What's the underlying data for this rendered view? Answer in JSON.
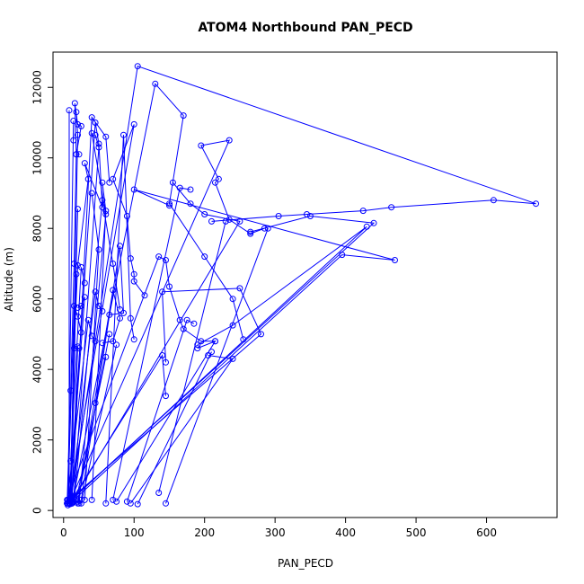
{
  "chart_data": {
    "type": "scatter",
    "title": "ATOM4 Northbound PAN_PECD",
    "xlabel": "PAN_PECD",
    "ylabel": "Altitude (m)",
    "xlim": [
      -15,
      700
    ],
    "ylim": [
      -200,
      13000
    ],
    "x_ticks": [
      0,
      100,
      200,
      300,
      400,
      500,
      600
    ],
    "y_ticks": [
      0,
      2000,
      4000,
      6000,
      8000,
      10000,
      12000
    ],
    "grid": false,
    "legend": "none",
    "style": {
      "line_color": "#0000ff",
      "marker": "open-circle",
      "axis_color": "#000000"
    },
    "series": [
      {
        "values": [
          [
            5,
            200
          ],
          [
            10,
            3400
          ],
          [
            15,
            7000
          ],
          [
            18,
            10100
          ],
          [
            16,
            11550
          ],
          [
            20,
            10950
          ],
          [
            25,
            10900
          ],
          [
            18,
            10100
          ],
          [
            22,
            10100
          ]
        ]
      },
      {
        "values": [
          [
            8,
            200
          ],
          [
            45,
            11000
          ],
          [
            50,
            10400
          ],
          [
            55,
            8600
          ],
          [
            30,
            9850
          ],
          [
            35,
            9400
          ],
          [
            20,
            6950
          ],
          [
            15,
            4600
          ],
          [
            22,
            4600
          ]
        ]
      },
      {
        "values": [
          [
            10,
            250
          ],
          [
            105,
            12600
          ],
          [
            670,
            8700
          ],
          [
            610,
            8800
          ],
          [
            465,
            8600
          ],
          [
            425,
            8500
          ],
          [
            345,
            8400
          ],
          [
            305,
            8350
          ],
          [
            210,
            8200
          ]
        ]
      },
      {
        "values": [
          [
            12,
            200
          ],
          [
            130,
            12100
          ],
          [
            170,
            11200
          ],
          [
            150,
            8700
          ],
          [
            200,
            7200
          ],
          [
            240,
            6000
          ],
          [
            255,
            4850
          ]
        ]
      },
      {
        "values": [
          [
            5,
            300
          ],
          [
            135,
            7200
          ],
          [
            145,
            7100
          ],
          [
            150,
            6350
          ],
          [
            165,
            5400
          ],
          [
            170,
            5150
          ],
          [
            195,
            4800
          ],
          [
            215,
            4800
          ]
        ]
      },
      {
        "values": [
          [
            8,
            250
          ],
          [
            100,
            10950
          ],
          [
            70,
            9400
          ],
          [
            90,
            8350
          ],
          [
            95,
            7150
          ],
          [
            100,
            6700
          ],
          [
            100,
            6500
          ],
          [
            115,
            6100
          ]
        ]
      },
      {
        "values": [
          [
            10,
            300
          ],
          [
            235,
            10500
          ],
          [
            195,
            10350
          ],
          [
            220,
            9400
          ],
          [
            215,
            9300
          ],
          [
            235,
            8250
          ],
          [
            265,
            7850
          ],
          [
            285,
            8000
          ]
        ]
      },
      {
        "values": [
          [
            15,
            350
          ],
          [
            250,
            8200
          ],
          [
            200,
            8400
          ],
          [
            180,
            8700
          ],
          [
            155,
            9300
          ]
        ]
      },
      {
        "values": [
          [
            5,
            200
          ],
          [
            440,
            8150
          ],
          [
            350,
            8350
          ],
          [
            265,
            7900
          ]
        ]
      },
      {
        "values": [
          [
            12,
            250
          ],
          [
            395,
            7250
          ],
          [
            470,
            7100
          ],
          [
            100,
            9100
          ],
          [
            150,
            8650
          ]
        ]
      },
      {
        "values": [
          [
            6,
            200
          ],
          [
            430,
            8050
          ],
          [
            240,
            5250
          ],
          [
            190,
            4700
          ]
        ]
      },
      {
        "values": [
          [
            8,
            300
          ],
          [
            280,
            5000
          ],
          [
            250,
            6300
          ],
          [
            140,
            6200
          ],
          [
            145,
            4200
          ]
        ]
      },
      {
        "values": [
          [
            10,
            250
          ],
          [
            140,
            4400
          ],
          [
            145,
            3250
          ]
        ]
      },
      {
        "values": [
          [
            60,
            200
          ],
          [
            85,
            10650
          ],
          [
            95,
            5450
          ],
          [
            100,
            4850
          ]
        ]
      },
      {
        "values": [
          [
            75,
            250
          ],
          [
            215,
            4800
          ],
          [
            190,
            4600
          ]
        ]
      },
      {
        "values": [
          [
            95,
            200
          ],
          [
            240,
            4300
          ],
          [
            205,
            4400
          ]
        ]
      },
      {
        "values": [
          [
            105,
            180
          ],
          [
            210,
            4500
          ]
        ]
      },
      {
        "values": [
          [
            145,
            200
          ],
          [
            290,
            8000
          ]
        ]
      },
      {
        "values": [
          [
            70,
            300
          ],
          [
            165,
            9150
          ],
          [
            180,
            9100
          ]
        ]
      },
      {
        "values": [
          [
            90,
            250
          ],
          [
            175,
            5400
          ],
          [
            185,
            5300
          ]
        ]
      },
      {
        "values": [
          [
            135,
            500
          ],
          [
            230,
            8200
          ]
        ]
      },
      {
        "values": [
          [
            12,
            400
          ],
          [
            40,
            11150
          ],
          [
            60,
            10600
          ],
          [
            65,
            9300
          ]
        ]
      },
      {
        "values": [
          [
            20,
            200
          ],
          [
            70,
            6250
          ],
          [
            80,
            5450
          ],
          [
            70,
            4800
          ],
          [
            55,
            4750
          ]
        ]
      },
      {
        "values": [
          [
            25,
            300
          ],
          [
            80,
            7500
          ],
          [
            85,
            5600
          ],
          [
            65,
            5550
          ]
        ]
      },
      {
        "values": [
          [
            15,
            250
          ],
          [
            55,
            8800
          ],
          [
            70,
            7000
          ],
          [
            80,
            5700
          ]
        ]
      },
      {
        "values": [
          [
            5,
            200
          ],
          [
            35,
            5400
          ],
          [
            40,
            4950
          ],
          [
            45,
            4800
          ]
        ]
      },
      {
        "values": [
          [
            10,
            250
          ],
          [
            45,
            6200
          ],
          [
            50,
            5800
          ],
          [
            55,
            5650
          ]
        ]
      },
      {
        "values": [
          [
            8,
            200
          ],
          [
            30,
            6050
          ],
          [
            25,
            5800
          ],
          [
            20,
            5750
          ]
        ]
      },
      {
        "values": [
          [
            6,
            300
          ],
          [
            15,
            5800
          ],
          [
            20,
            5500
          ],
          [
            25,
            5050
          ]
        ]
      },
      {
        "values": [
          [
            10,
            1400
          ],
          [
            25,
            6900
          ],
          [
            30,
            6450
          ]
        ]
      },
      {
        "values": [
          [
            12,
            200
          ],
          [
            20,
            4650
          ]
        ]
      },
      {
        "values": [
          [
            18,
            300
          ],
          [
            60,
            4350
          ],
          [
            45,
            3050
          ]
        ]
      },
      {
        "values": [
          [
            20,
            250
          ],
          [
            65,
            5000
          ]
        ]
      },
      {
        "values": [
          [
            25,
            200
          ],
          [
            75,
            4700
          ]
        ]
      },
      {
        "values": [
          [
            30,
            300
          ],
          [
            50,
            7400
          ],
          [
            40,
            9000
          ]
        ]
      },
      {
        "values": [
          [
            14,
            250
          ],
          [
            50,
            10300
          ],
          [
            45,
            10650
          ]
        ]
      },
      {
        "values": [
          [
            22,
            200
          ],
          [
            60,
            8400
          ],
          [
            40,
            10700
          ]
        ]
      },
      {
        "values": [
          [
            40,
            300
          ],
          [
            60,
            8500
          ],
          [
            55,
            9300
          ]
        ]
      },
      {
        "values": [
          [
            10,
            300
          ],
          [
            20,
            10650
          ],
          [
            18,
            11300
          ]
        ]
      },
      {
        "values": [
          [
            8,
            200
          ],
          [
            8,
            11350
          ]
        ]
      },
      {
        "values": [
          [
            6,
            150
          ],
          [
            14,
            11050
          ],
          [
            14,
            10500
          ]
        ]
      },
      {
        "values": [
          [
            9,
            180
          ],
          [
            20,
            8550
          ]
        ]
      },
      {
        "values": [
          [
            11,
            220
          ],
          [
            18,
            6700
          ]
        ]
      }
    ]
  }
}
